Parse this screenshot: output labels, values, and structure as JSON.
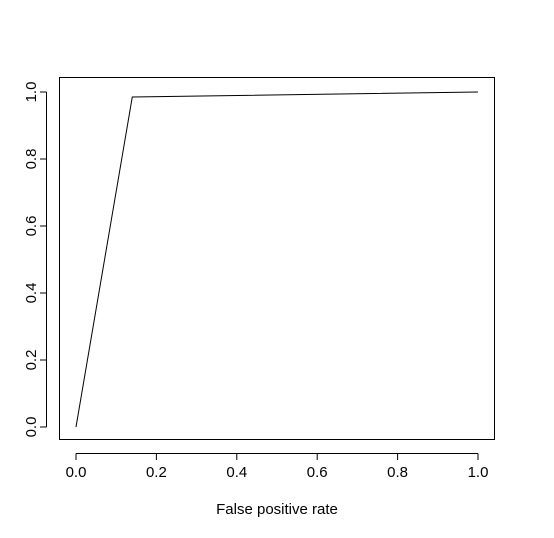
{
  "chart_data": {
    "type": "line",
    "title": "",
    "xlabel": "False positive rate",
    "ylabel": "",
    "xlim": [
      0,
      1
    ],
    "ylim": [
      0,
      1
    ],
    "x_ticks": [
      0.0,
      0.2,
      0.4,
      0.6,
      0.8,
      1.0
    ],
    "x_tick_labels": [
      "0.0",
      "0.2",
      "0.4",
      "0.6",
      "0.8",
      "1.0"
    ],
    "y_ticks": [
      0.0,
      0.2,
      0.4,
      0.6,
      0.8,
      1.0
    ],
    "y_tick_labels": [
      "0.0",
      "0.2",
      "0.4",
      "0.6",
      "0.8",
      "1.0"
    ],
    "grid": false,
    "legend": "none",
    "series": [
      {
        "x": [
          0.0,
          0.14,
          1.0
        ],
        "y": [
          0.0,
          0.985,
          1.0
        ],
        "color": "#000000"
      }
    ]
  }
}
